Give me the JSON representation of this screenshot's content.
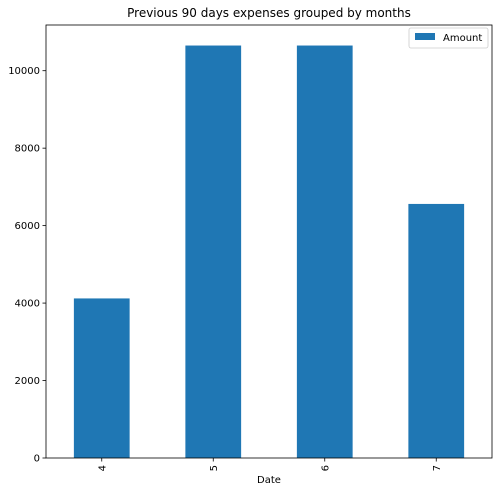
{
  "chart_data": {
    "type": "bar",
    "title": "Previous 90 days expenses grouped by months",
    "xlabel": "Date",
    "ylabel": "",
    "categories": [
      "4",
      "5",
      "6",
      "7"
    ],
    "series": [
      {
        "name": "Amount",
        "values": [
          4120,
          10650,
          10650,
          6560
        ],
        "color": "#1f77b4"
      }
    ],
    "ylim": [
      0,
      11180
    ],
    "yticks": [
      0,
      2000,
      4000,
      6000,
      8000,
      10000
    ],
    "ytick_labels": [
      "0",
      "2000",
      "4000",
      "6000",
      "8000",
      "10000"
    ],
    "grid": false,
    "legend_position": "upper right",
    "xtick_rotation": "vertical"
  }
}
